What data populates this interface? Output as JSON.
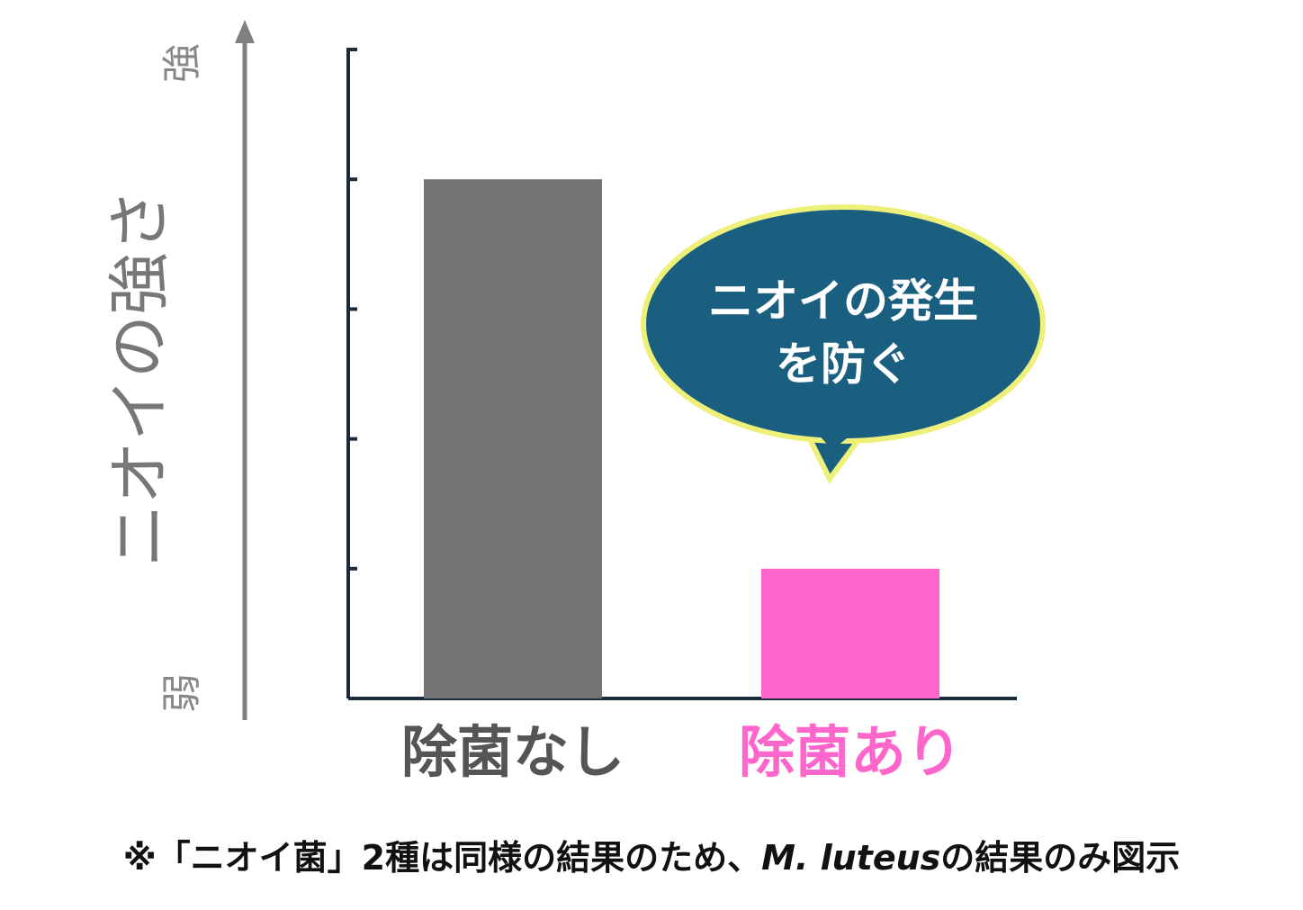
{
  "chart_data": {
    "type": "bar",
    "y_label": "ニオイの強さ",
    "y_high_label": "強",
    "y_low_label": "弱",
    "categories": [
      "除菌なし",
      "除菌あり"
    ],
    "values": [
      4,
      1
    ],
    "colors": [
      "#737373",
      "#ff66cc"
    ],
    "label_colors": [
      "#555555",
      "#ff66cc"
    ],
    "ylim": [
      0,
      5
    ],
    "yticks": [
      0,
      1,
      2,
      3,
      4,
      5
    ],
    "callout": [
      "ニオイの発生",
      "を防ぐ"
    ],
    "footnote": [
      "※「ニオイ菌」2種は同様の結果のため、",
      "M. luteus",
      "の結果のみ図示"
    ]
  }
}
